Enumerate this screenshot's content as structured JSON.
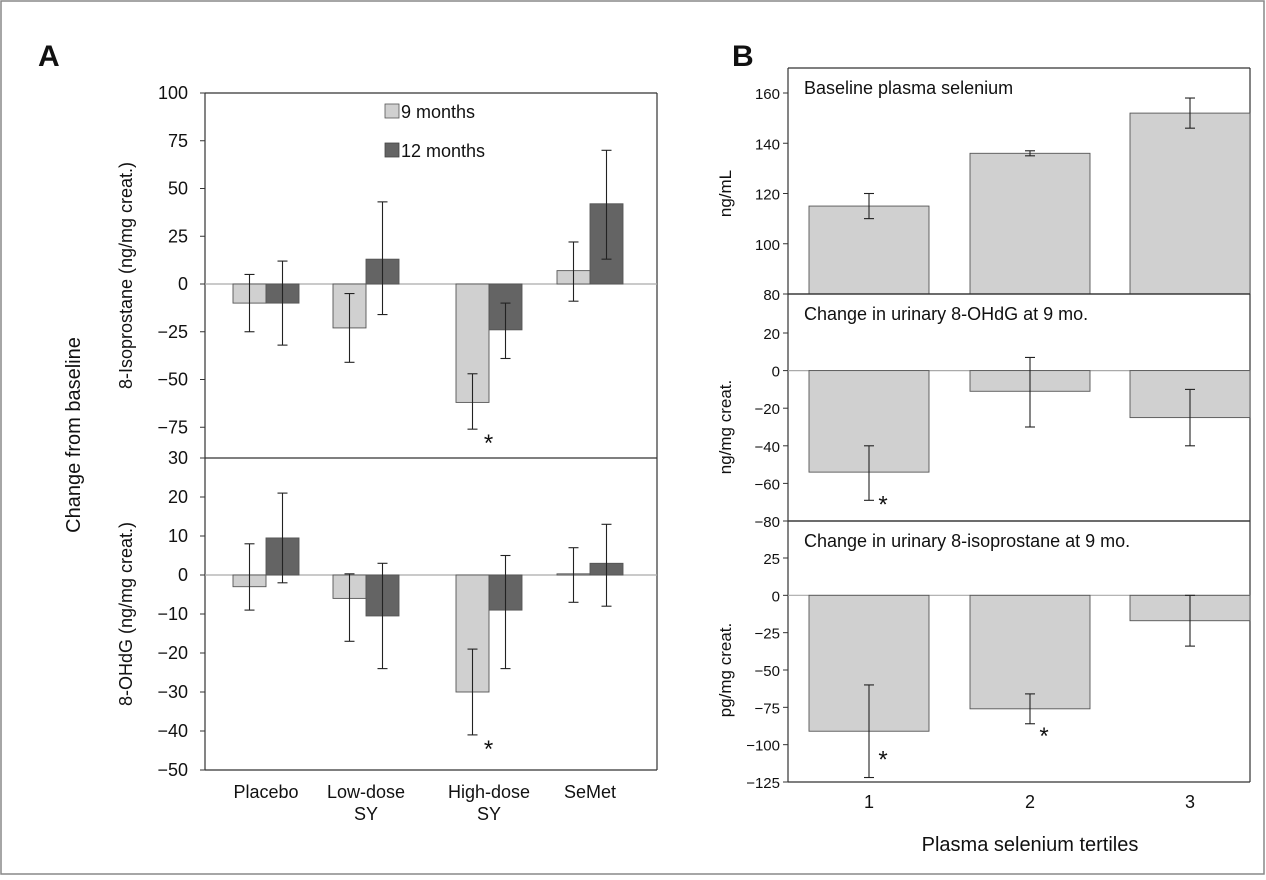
{
  "panels": {
    "A": {
      "label": "A",
      "shared_ylabel": "Change from baseline",
      "categories": [
        "Placebo",
        "Low-dose\nSY",
        "High-dose\nSY",
        "SeMet"
      ],
      "legend": [
        "9 months",
        "12 months"
      ],
      "colors": {
        "9 months": "#d0d0d0",
        "12 months": "#646464"
      }
    },
    "B": {
      "label": "B",
      "xlabel": "Plasma selenium tertiles",
      "categories": [
        "1",
        "2",
        "3"
      ],
      "bar_color": "#d0d0d0"
    }
  },
  "chart_data": [
    {
      "id": "A-top",
      "type": "bar",
      "ylabel": "8-Isoprostane (ng/mg creat.)",
      "ylim": [
        -100,
        100
      ],
      "yticks": [
        100,
        75,
        50,
        25,
        0,
        -25,
        -50,
        -75
      ],
      "categories": [
        "Placebo",
        "Low-dose SY",
        "High-dose SY",
        "SeMet"
      ],
      "series": [
        {
          "name": "9 months",
          "values": [
            -10,
            -23,
            -62,
            7
          ],
          "err_low": [
            -25,
            -41,
            -76,
            -9
          ],
          "err_high": [
            5,
            -5,
            -47,
            22
          ]
        },
        {
          "name": "12 months",
          "values": [
            -10,
            13,
            -24,
            42
          ],
          "err_low": [
            -32,
            -16,
            -39,
            13
          ],
          "err_high": [
            12,
            43,
            -10,
            70
          ]
        }
      ],
      "annotations": [
        {
          "text": "*",
          "category": "High-dose SY",
          "series": "9 months"
        }
      ],
      "legend_position": "top"
    },
    {
      "id": "A-bottom",
      "type": "bar",
      "ylabel": "8-OHdG (ng/mg creat.)",
      "ylim": [
        -50,
        30
      ],
      "yticks": [
        30,
        20,
        10,
        0,
        -10,
        -20,
        -30,
        -40,
        -50
      ],
      "categories": [
        "Placebo",
        "Low-dose SY",
        "High-dose SY",
        "SeMet"
      ],
      "series": [
        {
          "name": "9 months",
          "values": [
            -3,
            -6,
            -30,
            0.3
          ],
          "err_low": [
            -9,
            -17,
            -41,
            -7
          ],
          "err_high": [
            8,
            0.3,
            -19,
            7
          ]
        },
        {
          "name": "12 months",
          "values": [
            9.5,
            -10.5,
            -9,
            3
          ],
          "err_low": [
            -2,
            -24,
            -24,
            -8
          ],
          "err_high": [
            21,
            3,
            5,
            13
          ]
        }
      ],
      "annotations": [
        {
          "text": "*",
          "category": "High-dose SY",
          "series": "9 months"
        }
      ]
    },
    {
      "id": "B-top",
      "type": "bar",
      "title": "Baseline plasma selenium",
      "ylabel": "ng/mL",
      "ylim": [
        80,
        170
      ],
      "yticks": [
        160,
        140,
        120,
        100,
        80
      ],
      "categories": [
        "1",
        "2",
        "3"
      ],
      "values": [
        115,
        136,
        152
      ],
      "err_low": [
        110,
        135,
        146
      ],
      "err_high": [
        120,
        137,
        158
      ]
    },
    {
      "id": "B-mid",
      "type": "bar",
      "title": "Change in urinary 8-OHdG at 9 mo.",
      "ylabel": "ng/mg creat.",
      "ylim": [
        -80,
        30
      ],
      "yticks": [
        20,
        0,
        -20,
        -40,
        -60,
        -80
      ],
      "categories": [
        "1",
        "2",
        "3"
      ],
      "values": [
        -54,
        -11,
        -25
      ],
      "err_low": [
        -69,
        -30,
        -40
      ],
      "err_high": [
        -40,
        7,
        -10
      ],
      "annotations": [
        {
          "text": "*",
          "category": "1"
        }
      ]
    },
    {
      "id": "B-bottom",
      "type": "bar",
      "title": "Change in urinary 8-isoprostane at 9 mo.",
      "ylabel": "pg/mg creat.",
      "ylim": [
        -125,
        50
      ],
      "yticks": [
        25,
        0,
        -25,
        -50,
        -75,
        -100,
        -125
      ],
      "categories": [
        "1",
        "2",
        "3"
      ],
      "values": [
        -91,
        -76,
        -17
      ],
      "err_low": [
        -122,
        -86,
        -34
      ],
      "err_high": [
        -60,
        -66,
        0
      ],
      "annotations": [
        {
          "text": "*",
          "category": "1"
        },
        {
          "text": "*",
          "category": "2"
        }
      ],
      "xlabel": "Plasma selenium tertiles"
    }
  ]
}
